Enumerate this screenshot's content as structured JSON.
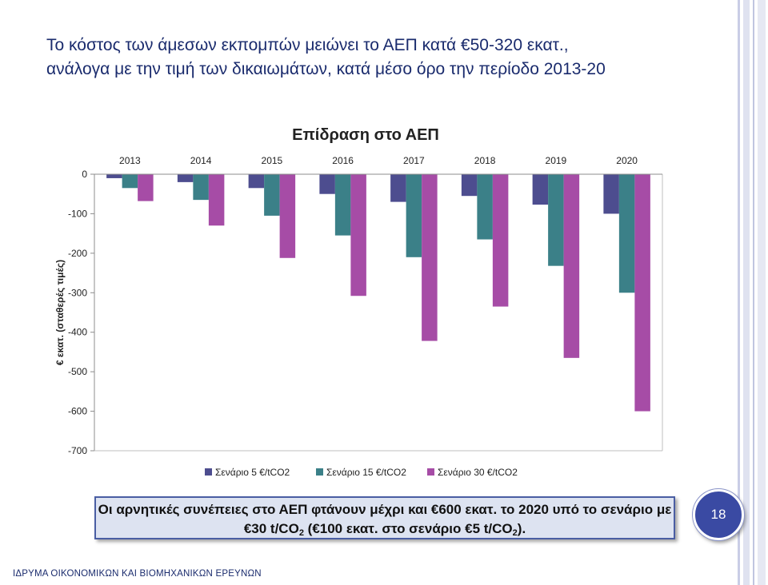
{
  "slide": {
    "title_line1": "Το κόστος των άμεσων εκπομπών μειώνει το ΑΕΠ κατά €50-320 εκατ.,",
    "title_line2": "ανάλογα με την τιμή των δικαιωμάτων, κατά μέσο όρο την περίοδο 2013-20",
    "note_line1": "Οι αρνητικές συνέπειες στο ΑΕΠ φτάνουν μέχρι και €600 εκατ. το 2020 υπό το σενάριο με",
    "note_line2_a": "€30 t/CO",
    "note_line2_sub": "2",
    "note_line2_b": " (€100 εκατ. στο σενάριο €5 t/CO",
    "note_line2_sub2": "2",
    "note_line2_c": ").",
    "page_number": "18",
    "footer": "ΙΔΡΥΜΑ ΟΙΚΟΝΟΜΙΚΩΝ ΚΑΙ ΒΙΟΜΗΧΑΝΙΚΩΝ ΕΡΕΥΝΩΝ"
  },
  "chart_data": {
    "type": "bar",
    "title": "Επίδραση στο ΑΕΠ",
    "ylabel": "€ εκατ. (σταθερές τιμές)",
    "xlabel": "",
    "categories": [
      "2013",
      "2014",
      "2015",
      "2016",
      "2017",
      "2018",
      "2019",
      "2020"
    ],
    "ylim": [
      -700,
      0
    ],
    "yticks": [
      0,
      -100,
      -200,
      -300,
      -400,
      -500,
      -600,
      -700
    ],
    "legend_position": "bottom",
    "series": [
      {
        "name": "Σενάριο 5 €/tCO2",
        "color": "#4d4d8f",
        "values": [
          -10,
          -20,
          -35,
          -50,
          -70,
          -55,
          -77,
          -100
        ]
      },
      {
        "name": "Σενάριο 15 €/tCO2",
        "color": "#3b8088",
        "values": [
          -35,
          -65,
          -105,
          -155,
          -210,
          -165,
          -232,
          -300
        ]
      },
      {
        "name": "Σενάριο 30 €/tCO2",
        "color": "#a64ca6",
        "values": [
          -68,
          -130,
          -212,
          -308,
          -422,
          -335,
          -465,
          -600
        ]
      }
    ]
  }
}
